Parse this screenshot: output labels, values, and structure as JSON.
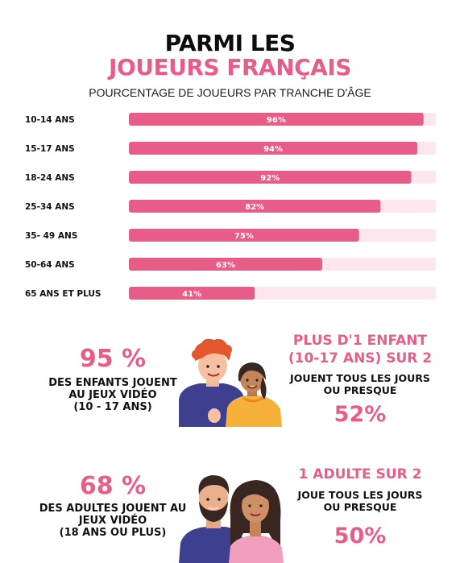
{
  "header": {
    "title_line1": "PARMI LES",
    "title_line2": "JOUEURS FRANÇAIS",
    "subtitle": "POURCENTAGE DE JOUEURS PAR TRANCHE D'ÂGE"
  },
  "colors": {
    "accent": "#e85d88",
    "bar_fill": "#e85d88",
    "bar_track": "#fde6ed",
    "text_dark": "#111111"
  },
  "chart_data": {
    "type": "bar",
    "orientation": "horizontal",
    "categories": [
      "10-14 ANS",
      "15-17 ANS",
      "18-24 ANS",
      "25-34 ANS",
      "35- 49 ANS",
      "50-64 ANS",
      "65 ANS ET PLUS"
    ],
    "values": [
      96,
      94,
      92,
      82,
      75,
      63,
      41
    ],
    "value_labels": [
      "96%",
      "94%",
      "92%",
      "82%",
      "75%",
      "63%",
      "41%"
    ],
    "title": "POURCENTAGE DE JOUEURS PAR TRANCHE D'ÂGE",
    "xlim": [
      0,
      100
    ],
    "grid": false
  },
  "children_section": {
    "big_stat": "95 %",
    "line1": "DES ENFANTS JOUENT",
    "line2": "AU JEUX VIDÉO",
    "line3": "(10 - 17 ANS)",
    "right_line1": "PLUS D'1 ENFANT",
    "right_line2": "(10-17 ANS) SUR 2",
    "right_line3": "JOUENT TOUS LES JOURS",
    "right_line4": "OU PRESQUE",
    "right_stat": "52%"
  },
  "adults_section": {
    "big_stat": "68 %",
    "line1": "DES ADULTES JOUENT AU",
    "line2": "JEUX VIDÉO",
    "line3": "(18 ANS OU PLUS)",
    "right_line1": "1 ADULTE SUR 2",
    "right_line2": "JOUE TOUS LES JOURS",
    "right_line3": "OU PRESQUE",
    "right_stat": "50%"
  },
  "illustrations": {
    "children": "two-children-illustration",
    "adults": "two-adults-illustration"
  }
}
